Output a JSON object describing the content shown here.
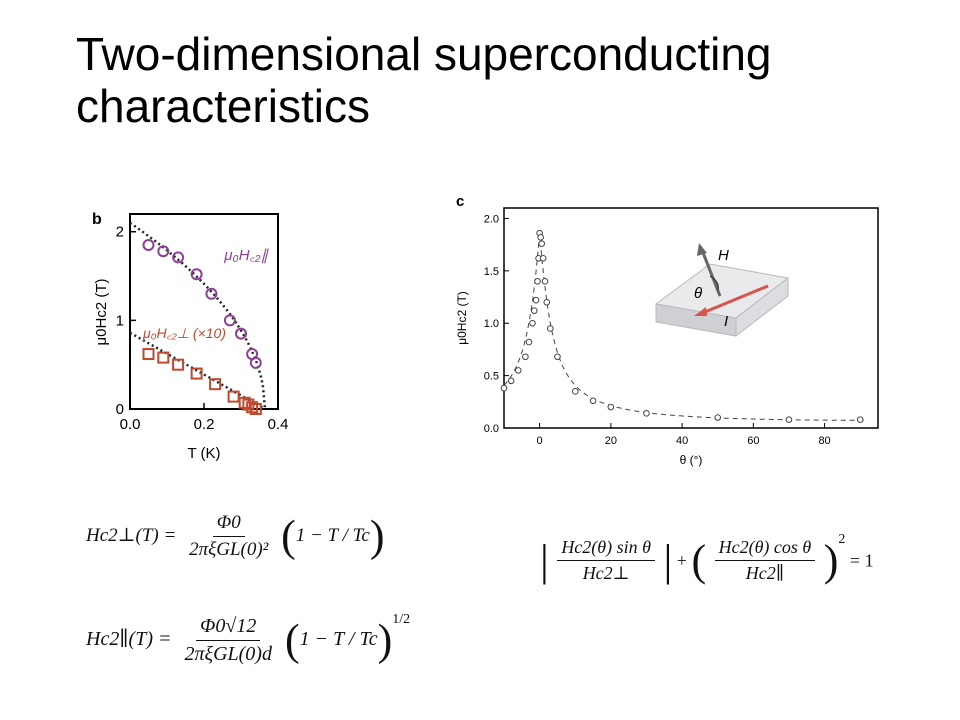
{
  "slide": {
    "title": "Two-dimensional superconducting characteristics"
  },
  "panel_b": {
    "label": "b",
    "legend_parallel": "μ₀H꜀₂∥",
    "legend_perp": "μ₀H꜀₂⊥ (×10)",
    "colors": {
      "parallel": "#8e3f96",
      "perp": "#c0482f",
      "fit": "#222222"
    }
  },
  "panel_c": {
    "label": "c",
    "inset_H": "H",
    "inset_theta": "θ",
    "inset_I": "I",
    "colors": {
      "data": "#444444",
      "fit": "#444444",
      "arrow": "#d9534f"
    }
  },
  "chart_data": [
    {
      "type": "scatter",
      "panel": "b",
      "xlabel": "T (K)",
      "ylabel": "μ0Hc2 (T)",
      "xlim": [
        0.0,
        0.4
      ],
      "ylim": [
        0,
        2.2
      ],
      "x_ticks": [
        "0.0",
        "0.2",
        "0.4"
      ],
      "y_ticks": [
        "0",
        "1",
        "2"
      ],
      "series": [
        {
          "name": "μ0Hc2||",
          "marker": "circle",
          "x": [
            0.05,
            0.09,
            0.13,
            0.18,
            0.22,
            0.27,
            0.3,
            0.33,
            0.34
          ],
          "y": [
            1.85,
            1.78,
            1.71,
            1.52,
            1.3,
            1.0,
            0.85,
            0.62,
            0.52
          ]
        },
        {
          "name": "μ0Hc2⊥ (×10)",
          "marker": "square",
          "x": [
            0.05,
            0.09,
            0.13,
            0.18,
            0.23,
            0.28,
            0.31,
            0.32,
            0.33,
            0.34
          ],
          "y": [
            0.62,
            0.58,
            0.5,
            0.4,
            0.28,
            0.14,
            0.07,
            0.05,
            0.02,
            0.0
          ]
        }
      ],
      "fits": [
        {
          "kind": "sqrt",
          "Tc": 0.365,
          "H0": 2.1
        },
        {
          "kind": "linear",
          "Tc": 0.365,
          "H0": 0.86
        }
      ]
    },
    {
      "type": "scatter",
      "panel": "c",
      "xlabel": "θ (°)",
      "ylabel": "μ0Hc2 (T)",
      "xlim": [
        -10,
        95
      ],
      "ylim": [
        0,
        2.1
      ],
      "x_ticks": [
        "0",
        "20",
        "40",
        "60",
        "80"
      ],
      "y_ticks": [
        "0.0",
        "0.5",
        "1.0",
        "1.5",
        "2.0"
      ],
      "series": [
        {
          "name": "",
          "marker": "circle",
          "x": [
            -10,
            -8,
            -6,
            -4,
            -3,
            -2,
            -1.5,
            -1,
            -0.6,
            -0.3,
            0,
            0.3,
            0.6,
            1,
            1.5,
            2,
            3,
            5,
            10,
            15,
            20,
            30,
            50,
            70,
            90
          ],
          "y": [
            0.38,
            0.45,
            0.55,
            0.68,
            0.82,
            1.0,
            1.12,
            1.22,
            1.4,
            1.62,
            1.86,
            1.82,
            1.76,
            1.62,
            1.4,
            1.2,
            0.95,
            0.68,
            0.35,
            0.26,
            0.2,
            0.14,
            0.1,
            0.08,
            0.08
          ]
        }
      ],
      "fit": {
        "kind": "tinkham",
        "Hpar": 1.86,
        "Hperp": 0.074
      }
    }
  ],
  "equations": {
    "eq1_lhs": "Hc2⊥(T) =",
    "eq1_num": "Φ0",
    "eq1_den": "2πξGL(0)²",
    "eq1_paren": "1 − T / Tc",
    "eq2_lhs": "Hc2∥(T) =",
    "eq2_num": "Φ0√12",
    "eq2_den": "2πξGL(0)d",
    "eq2_paren": "1 − T / Tc",
    "eq2_exp": "1/2",
    "eq3_a_num": "Hc2(θ) sin θ",
    "eq3_a_den": "Hc2⊥",
    "eq3_b_num": "Hc2(θ) cos θ",
    "eq3_b_den": "Hc2∥",
    "eq3_exp": "2",
    "eq3_rhs": "= 1"
  }
}
